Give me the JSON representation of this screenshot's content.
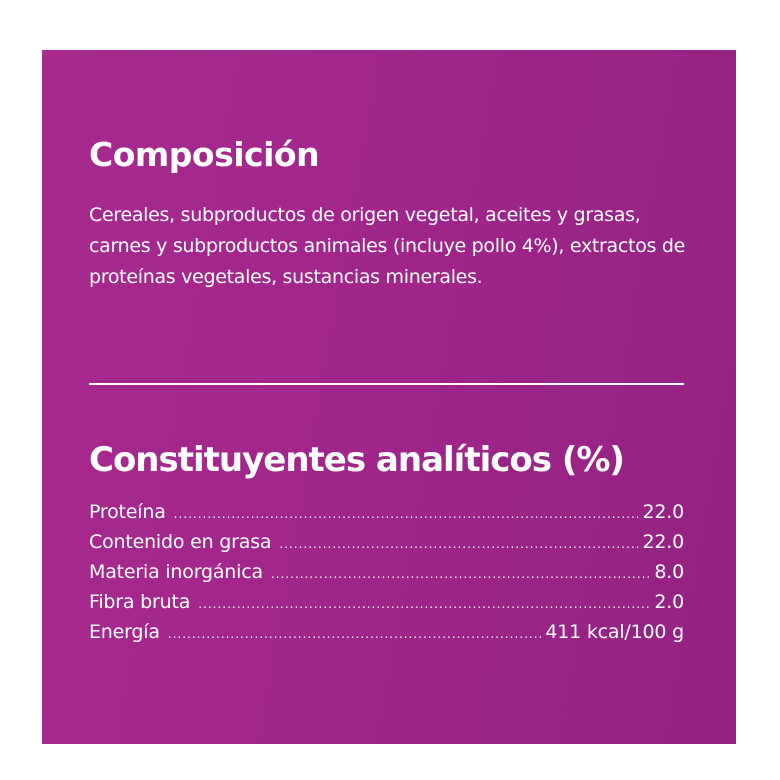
{
  "composition": {
    "title": "Composición",
    "text": "Cereales, subproductos de origen vegetal, aceites y grasas, carnes y subproductos animales (incluye pollo 4%), extractos de proteínas vegetales, sustancias minerales."
  },
  "analytical": {
    "title": "Constituyentes analíticos (%)",
    "rows": [
      {
        "label": "Proteína",
        "value": "22.0"
      },
      {
        "label": "Contenido en grasa",
        "value": "22.0"
      },
      {
        "label": "Materia inorgánica",
        "value": "8.0"
      },
      {
        "label": "Fibra bruta",
        "value": "2.0"
      },
      {
        "label": "Energía",
        "value": "411 kcal/100 g"
      }
    ]
  },
  "colors": {
    "background": "#a0258a",
    "text": "#ffffff"
  }
}
